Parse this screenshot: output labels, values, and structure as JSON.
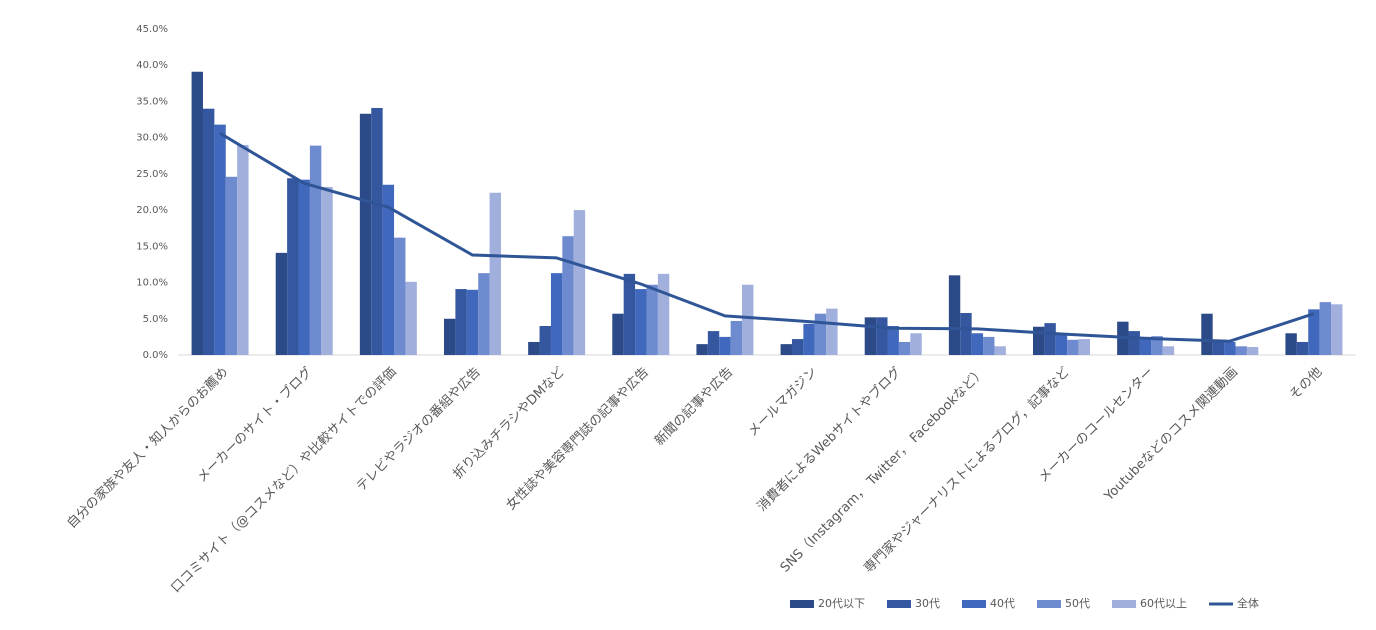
{
  "chart_data": {
    "type": "bar",
    "categories": [
      "自分の家族や友人・知人からのお薦め",
      "メーカーのサイト・ブログ",
      "口コミサイト（@コスメなど）や比較サイトでの評価",
      "テレビやラジオの番組や広告",
      "折り込みチラシやDMなど",
      "女性誌や美容専門誌の記事や広告",
      "新聞の記事や広告",
      "メールマガジン",
      "消費者によるWebサイトやブログ",
      "SNS（Instagram， Twitter， Facebookなど）",
      "専門家やジャーナリストによるブログ，記事など",
      "メーカーのコールセンター",
      "Youtubeなどのコスメ関連動画",
      "その他"
    ],
    "series": [
      {
        "name": "20代以下",
        "type": "bar",
        "color": "#2c4a87",
        "values": [
          39.1,
          14.1,
          33.3,
          5.0,
          1.8,
          5.7,
          1.5,
          1.5,
          5.2,
          11.0,
          3.9,
          4.6,
          5.7,
          3.0
        ]
      },
      {
        "name": "30代",
        "type": "bar",
        "color": "#34579f",
        "values": [
          34.0,
          24.4,
          34.1,
          9.1,
          4.0,
          11.2,
          3.3,
          2.2,
          5.2,
          5.8,
          4.4,
          3.3,
          1.9,
          1.8
        ]
      },
      {
        "name": "40代",
        "type": "bar",
        "color": "#4069bd",
        "values": [
          31.8,
          24.2,
          23.5,
          9.0,
          11.3,
          9.1,
          2.5,
          4.3,
          4.0,
          3.0,
          2.9,
          2.5,
          1.8,
          6.3
        ]
      },
      {
        "name": "50代",
        "type": "bar",
        "color": "#6f8bcf",
        "values": [
          24.6,
          28.9,
          16.2,
          11.3,
          16.4,
          9.7,
          4.7,
          5.7,
          1.8,
          2.5,
          2.1,
          2.6,
          1.2,
          7.3
        ]
      },
      {
        "name": "60代以上",
        "type": "bar",
        "color": "#a0afdb",
        "values": [
          29.0,
          23.2,
          10.1,
          22.4,
          20.0,
          11.2,
          9.7,
          6.4,
          3.0,
          1.2,
          2.2,
          1.2,
          1.1,
          7.0
        ]
      },
      {
        "name": "全体",
        "type": "line",
        "color": "#2f5597",
        "values": [
          30.6,
          23.7,
          20.4,
          13.8,
          13.4,
          9.8,
          5.4,
          4.6,
          3.7,
          3.6,
          2.9,
          2.3,
          1.9,
          5.7
        ]
      }
    ],
    "ylim": [
      0,
      45
    ],
    "yticks": [
      {
        "value": 0,
        "label": "0.0%"
      },
      {
        "value": 5,
        "label": "5.0%"
      },
      {
        "value": 10,
        "label": "10.0%"
      },
      {
        "value": 15,
        "label": "15.0%"
      },
      {
        "value": 20,
        "label": "20.0%"
      },
      {
        "value": 25,
        "label": "25.0%"
      },
      {
        "value": 30,
        "label": "30.0%"
      },
      {
        "value": 35,
        "label": "35.0%"
      },
      {
        "value": 40,
        "label": "40.0%"
      },
      {
        "value": 45,
        "label": "45.0%"
      }
    ],
    "grid": false,
    "legend": "bottom"
  }
}
